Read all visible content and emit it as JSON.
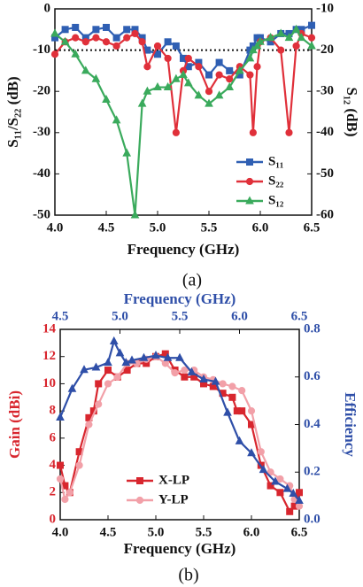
{
  "chart_data": [
    {
      "type": "line",
      "x_label": "Frequency (GHz)",
      "y_label": "S₁₁/S₂₂ (dB)",
      "y2_label": "S₁₂ (dB)",
      "caption": "(a)",
      "x": [
        4.0,
        4.1,
        4.2,
        4.3,
        4.4,
        4.5,
        4.6,
        4.7,
        4.78,
        4.85,
        4.9,
        5.0,
        5.1,
        5.18,
        5.25,
        5.3,
        5.4,
        5.5,
        5.6,
        5.7,
        5.8,
        5.9,
        5.93,
        5.97,
        6.0,
        6.1,
        6.2,
        6.28,
        6.35,
        6.4,
        6.5
      ],
      "series": [
        {
          "name": "S₁₁",
          "color": "#2f5fb3",
          "marker": "square",
          "values": [
            -7,
            -5,
            -4.5,
            -7,
            -5,
            -4.5,
            -7,
            -5,
            -5,
            -7,
            -10,
            -11,
            -8,
            -9,
            -12,
            -14,
            -13,
            -16,
            -13,
            -15,
            -16,
            -10,
            -9,
            -7,
            -7,
            -8,
            -6,
            -6,
            -5,
            -5,
            -4
          ]
        },
        {
          "name": "S₂₂",
          "color": "#e0303a",
          "marker": "circle",
          "values": [
            -11,
            -8,
            -7,
            -8,
            -7,
            -8,
            -9,
            -7,
            -6,
            -8,
            -14,
            -9,
            -12,
            -30,
            -15,
            -12,
            -14,
            -20,
            -16,
            -17,
            -14,
            -16,
            -30,
            -14,
            -8,
            -7,
            -10,
            -30,
            -9,
            -6,
            -7
          ]
        },
        {
          "name": "S₁₂",
          "color": "#3aaa5c",
          "marker": "triangle",
          "axis": "y2",
          "values": [
            -16,
            -18,
            -21,
            -25,
            -27,
            -32,
            -37,
            -45,
            -60,
            -33,
            -30,
            -29,
            -29,
            -27,
            -26,
            -28,
            -31,
            -33,
            -31,
            -29,
            -25,
            -22,
            -20,
            -19,
            -18,
            -17,
            -16,
            -17,
            -15,
            -17,
            -19
          ]
        }
      ],
      "reference_line": -10,
      "xlim": [
        4.0,
        6.5
      ],
      "xticks": [
        {
          "value": 4,
          "label": "4.0"
        },
        4.5,
        {
          "value": 5,
          "label": "5.0"
        },
        5.5,
        {
          "value": 6,
          "label": "6.0"
        },
        6.5
      ],
      "ylim": [
        -50,
        0
      ],
      "yticks": [
        0,
        -10,
        -20,
        -30,
        -40,
        -50
      ],
      "y2lim": [
        -60,
        -10
      ],
      "y2ticks": [
        -10,
        -20,
        -30,
        -40,
        -50,
        -60
      ],
      "legend": "lower right"
    },
    {
      "type": "line",
      "x_label": "Frequency (GHz)",
      "x2_label": "Frequency (GHz)",
      "y_label": "Gain (dBi)",
      "y2_label": "Efficiency",
      "caption": "(b)",
      "series": [
        {
          "name": "X-LP",
          "color": "#d8262e",
          "marker": "square",
          "x": [
            4.0,
            4.05,
            4.1,
            4.2,
            4.3,
            4.35,
            4.4,
            4.5,
            4.6,
            4.7,
            4.8,
            4.9,
            5.0,
            5.1,
            5.2,
            5.3,
            5.4,
            5.5,
            5.6,
            5.7,
            5.8,
            5.85,
            5.9,
            6.0,
            6.1,
            6.2,
            6.3,
            6.4,
            6.45,
            6.5
          ],
          "values": [
            4,
            2.5,
            2,
            5,
            7.5,
            8,
            10,
            11,
            10.5,
            11,
            11.5,
            11.5,
            12,
            12.2,
            11,
            10.5,
            10.5,
            10,
            9.8,
            9.3,
            9,
            8,
            8,
            7,
            4,
            2.5,
            2,
            0.6,
            1,
            2
          ]
        },
        {
          "name": "Y-LP",
          "color": "#f2a0a8",
          "marker": "circle",
          "x": [
            4.0,
            4.05,
            4.1,
            4.2,
            4.3,
            4.4,
            4.5,
            4.6,
            4.7,
            4.8,
            4.9,
            5.0,
            5.1,
            5.2,
            5.3,
            5.4,
            5.5,
            5.6,
            5.7,
            5.8,
            5.9,
            6.0,
            6.1,
            6.2,
            6.3,
            6.4,
            6.45,
            6.5
          ],
          "values": [
            3,
            1.5,
            2,
            4,
            7,
            8.5,
            10,
            10.5,
            11.5,
            11.5,
            11.8,
            12,
            11.5,
            10.8,
            11,
            11,
            10.5,
            10.3,
            10,
            9.8,
            9.5,
            8,
            5,
            3.5,
            3,
            2.5,
            1.5,
            1
          ]
        },
        {
          "color": "#2f4fa8",
          "marker": "triangle",
          "axis": "y2",
          "xaxis": "x2",
          "x": [
            4.5,
            4.6,
            4.7,
            4.8,
            4.9,
            4.95,
            5.0,
            5.05,
            5.1,
            5.2,
            5.3,
            5.4,
            5.5,
            5.6,
            5.7,
            5.8,
            5.9,
            6.0,
            6.1,
            6.2,
            6.3,
            6.4,
            6.45,
            6.5
          ],
          "values": [
            0.43,
            0.55,
            0.63,
            0.64,
            0.66,
            0.75,
            0.7,
            0.66,
            0.67,
            0.68,
            0.69,
            0.68,
            0.68,
            0.62,
            0.59,
            0.58,
            0.45,
            0.33,
            0.28,
            0.21,
            0.16,
            0.13,
            0.11,
            0.08
          ]
        }
      ],
      "xlim": [
        4.0,
        6.5
      ],
      "xticks": [
        {
          "value": 4,
          "label": "4.0"
        },
        4.5,
        {
          "value": 5,
          "label": "5.0"
        },
        5.5,
        {
          "value": 6,
          "label": "6.0"
        },
        6.5
      ],
      "x2lim": [
        4.5,
        6.5
      ],
      "x2ticks": [
        4.5,
        {
          "value": 5,
          "label": "5.0"
        },
        5.5,
        {
          "value": 6,
          "label": "6.0"
        },
        6.5
      ],
      "ylim": [
        0,
        14
      ],
      "yticks": [
        0,
        2,
        4,
        6,
        8,
        10,
        12,
        14
      ],
      "y2lim": [
        0,
        0.8
      ],
      "y2ticks": [
        {
          "value": 0,
          "label": "0.0"
        },
        0.2,
        0.4,
        0.6,
        0.8
      ],
      "y_color": "#d8262e",
      "y2_color": "#2f4fa8",
      "x2_color": "#2f4fa8",
      "legend": "lower center"
    }
  ]
}
